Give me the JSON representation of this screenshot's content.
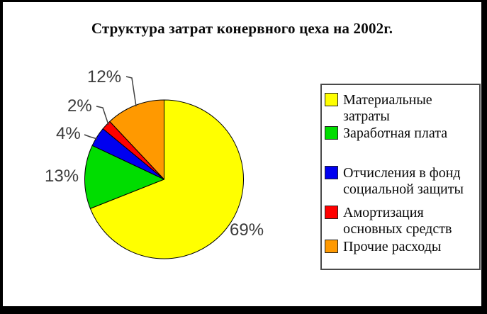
{
  "title": "Структура затрат конервного цеха на 2002г.",
  "chart_data": {
    "type": "pie",
    "title": "Структура затрат конервного цеха на 2002г.",
    "categories": [
      "Материальные затраты",
      "Заработная плата",
      "Отчисления в фонд социальной защиты",
      "Амортизация основных средств",
      "Прочие расходы"
    ],
    "values": [
      69,
      13,
      4,
      2,
      12
    ],
    "unit": "%",
    "labels": [
      "69%",
      "13%",
      "4%",
      "2%",
      "12%"
    ],
    "colors": [
      "#ffff00",
      "#00dd00",
      "#0000f0",
      "#ff0000",
      "#ff9900"
    ],
    "start_angle_deg": 0,
    "direction": "clockwise",
    "legend_position": "right",
    "outline_color": "#000000"
  },
  "legend": {
    "items": [
      {
        "label": "Материальные затраты",
        "color": "#ffff00"
      },
      {
        "label": "Заработная плата",
        "color": "#00dd00"
      },
      {
        "label": "Отчисления в фонд\nсоциальной защиты",
        "color": "#0000f0"
      },
      {
        "label": "Амортизация\nосновных средств",
        "color": "#ff0000"
      },
      {
        "label": "Прочие расходы",
        "color": "#ff9900"
      }
    ]
  },
  "frame_color": "#000000"
}
